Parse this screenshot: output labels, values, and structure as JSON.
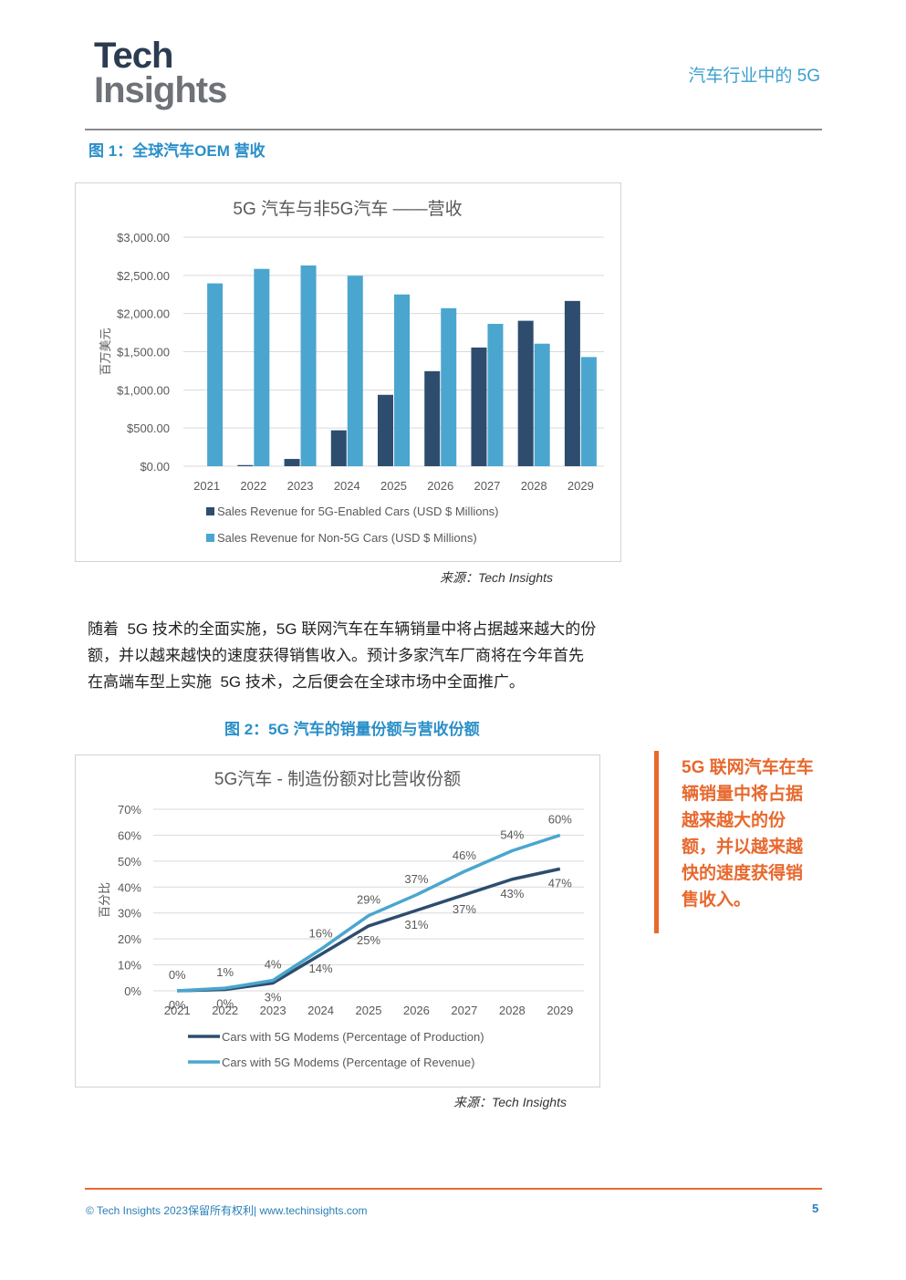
{
  "header": {
    "logo_line1": "Tech",
    "logo_line2": "Insights",
    "title": "汽车行业中的 5G"
  },
  "figure1": {
    "caption": "图 1：全球汽车OEM 营收",
    "source": "来源：Tech Insights"
  },
  "figure2": {
    "caption": "图 2：5G 汽车的销量份额与营收份额",
    "source": "来源：Tech Insights"
  },
  "body": {
    "paragraph": [
      "随着  5G 技术的全面实施，5G 联网汽车在车辆销量中将占据越来越大的份",
      "额，并以越来越快的速度获得销售收入。预计多家汽车厂商将在今年首先",
      "在高端车型上实施  5G 技术，之后便会在全球市场中全面推广。"
    ]
  },
  "callout": {
    "lines": [
      "5G 联网汽车在车",
      "辆销量中将占据",
      "越来越大的份",
      "额，并以越来越",
      "快的速度获得销",
      "售收入。"
    ]
  },
  "footer": {
    "left": "© Tech Insights 2023保留所有权利| www.techinsights.com",
    "page": "5"
  },
  "colors": {
    "dark_series": "#2e4d6e",
    "light_series": "#4aa6cf",
    "accent_orange": "#e8692e",
    "caption_blue": "#2a8fc8"
  },
  "chart_data": [
    {
      "type": "bar",
      "title": "5G 汽车与非5G汽车 ——营收",
      "ylabel": "百万美元",
      "xlabel": "",
      "categories": [
        "2021",
        "2022",
        "2023",
        "2024",
        "2025",
        "2026",
        "2027",
        "2028",
        "2029"
      ],
      "ylim": [
        0,
        3000
      ],
      "yticks": [
        "$0.00",
        "$500.00",
        "$1,000.00",
        "$1,500.00",
        "$2,000.00",
        "$2,500.00",
        "$3,000.00"
      ],
      "ytick_values": [
        0,
        500,
        1000,
        1500,
        2000,
        2500,
        3000
      ],
      "grid": true,
      "legend_position": "bottom",
      "series": [
        {
          "name": "Sales Revenue for 5G-Enabled Cars (USD $ Millions)",
          "color": "#2e4d6e",
          "values": [
            0,
            15,
            95,
            470,
            935,
            1245,
            1555,
            1905,
            2165
          ]
        },
        {
          "name": "Sales Revenue for Non-5G Cars (USD $ Millions)",
          "color": "#4aa6cf",
          "values": [
            2395,
            2585,
            2630,
            2495,
            2250,
            2070,
            1865,
            1605,
            1430
          ]
        }
      ]
    },
    {
      "type": "line",
      "title": "5G汽车 - 制造份额对比营收份额",
      "ylabel": "百分比",
      "xlabel": "",
      "categories": [
        "2021",
        "2022",
        "2023",
        "2024",
        "2025",
        "2026",
        "2027",
        "2028",
        "2029"
      ],
      "ylim": [
        0,
        70
      ],
      "yticks": [
        "0%",
        "10%",
        "20%",
        "30%",
        "40%",
        "50%",
        "60%",
        "70%"
      ],
      "ytick_values": [
        0,
        10,
        20,
        30,
        40,
        50,
        60,
        70
      ],
      "grid": true,
      "legend_position": "bottom",
      "series": [
        {
          "name": "Cars with 5G Modems (Percentage of Production)",
          "color": "#2e4d6e",
          "values": [
            0,
            0.5,
            3,
            14,
            25,
            31,
            37,
            43,
            47
          ],
          "labels": [
            "0%",
            "0%",
            "3%",
            "14%",
            "25%",
            "31%",
            "37%",
            "43%",
            "47%"
          ]
        },
        {
          "name": "Cars with 5G Modems (Percentage of Revenue)",
          "color": "#4aa6cf",
          "values": [
            0,
            1,
            4,
            16,
            29,
            37,
            46,
            54,
            60
          ],
          "labels": [
            "0%",
            "1%",
            "4%",
            "16%",
            "29%",
            "37%",
            "46%",
            "54%",
            "60%"
          ]
        }
      ]
    }
  ]
}
